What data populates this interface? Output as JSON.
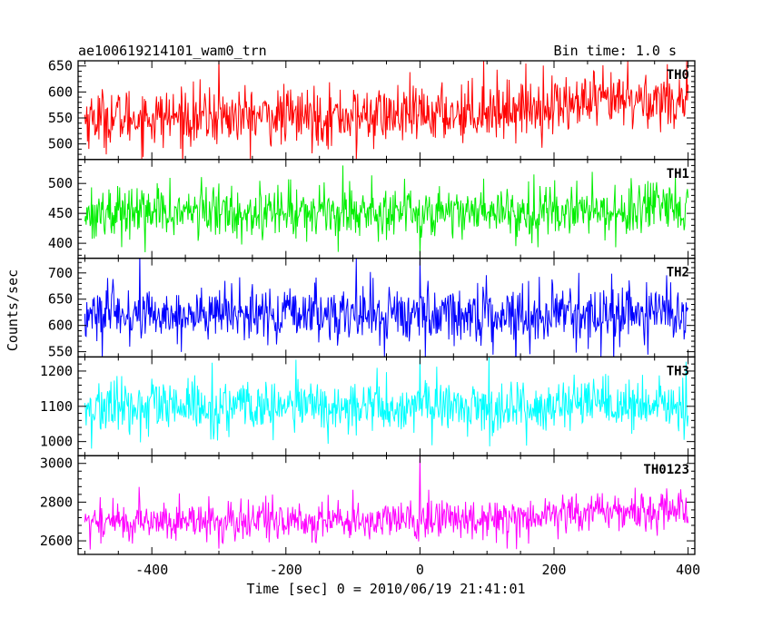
{
  "chart_data": {
    "type": "line",
    "title": "ae100619214101_wam0_trn",
    "subtitle": "Bin time: 1.0 s",
    "xlabel": "Time [sec] 0 = 2010/06/19 21:41:01",
    "ylabel": "Counts/sec",
    "xlim": [
      -510,
      410
    ],
    "x_ticks": [
      -400,
      -200,
      0,
      200,
      400
    ],
    "x_step": 1.0,
    "grid": false,
    "panels": [
      {
        "name": "TH0",
        "color": "#ff0000",
        "ylim": [
          470,
          660
        ],
        "y_ticks": [
          500,
          550,
          600,
          650
        ],
        "trend": [
          [
            -500,
            550
          ],
          [
            0,
            555
          ],
          [
            200,
            575
          ],
          [
            400,
            588
          ]
        ],
        "noise_sd": 28,
        "spikes": [
          [
            -300,
            668
          ],
          [
            95,
            665
          ],
          [
            310,
            660
          ],
          [
            -95,
            470
          ]
        ]
      },
      {
        "name": "TH1",
        "color": "#00ee00",
        "ylim": [
          375,
          540
        ],
        "y_ticks": [
          400,
          450,
          500
        ],
        "trend": [
          [
            -500,
            452
          ],
          [
            400,
            455
          ]
        ],
        "noise_sd": 22,
        "spikes": [
          [
            0,
            378
          ],
          [
            -115,
            530
          ],
          [
            -410,
            385
          ]
        ]
      },
      {
        "name": "TH2",
        "color": "#0000ff",
        "ylim": [
          540,
          728
        ],
        "y_ticks": [
          550,
          600,
          650,
          700
        ],
        "trend": [
          [
            -500,
            620
          ],
          [
            400,
            622
          ]
        ],
        "noise_sd": 27,
        "spikes": [
          [
            0,
            728
          ],
          [
            -95,
            728
          ],
          [
            270,
            540
          ]
        ]
      },
      {
        "name": "TH3",
        "color": "#00ffff",
        "ylim": [
          960,
          1240
        ],
        "y_ticks": [
          1000,
          1100,
          1200
        ],
        "trend": [
          [
            -500,
            1095
          ],
          [
            400,
            1100
          ]
        ],
        "noise_sd": 38,
        "spikes": [
          [
            0,
            1240
          ],
          [
            -185,
            1232
          ],
          [
            -490,
            980
          ]
        ]
      },
      {
        "name": "TH0123",
        "color": "#ff00ff",
        "ylim": [
          2530,
          3040
        ],
        "y_ticks": [
          2600,
          2800,
          3000
        ],
        "trend": [
          [
            -500,
            2700
          ],
          [
            0,
            2705
          ],
          [
            200,
            2740
          ],
          [
            400,
            2765
          ]
        ],
        "noise_sd": 52,
        "spikes": [
          [
            0,
            3040
          ],
          [
            -300,
            2560
          ],
          [
            130,
            2560
          ]
        ]
      }
    ]
  }
}
